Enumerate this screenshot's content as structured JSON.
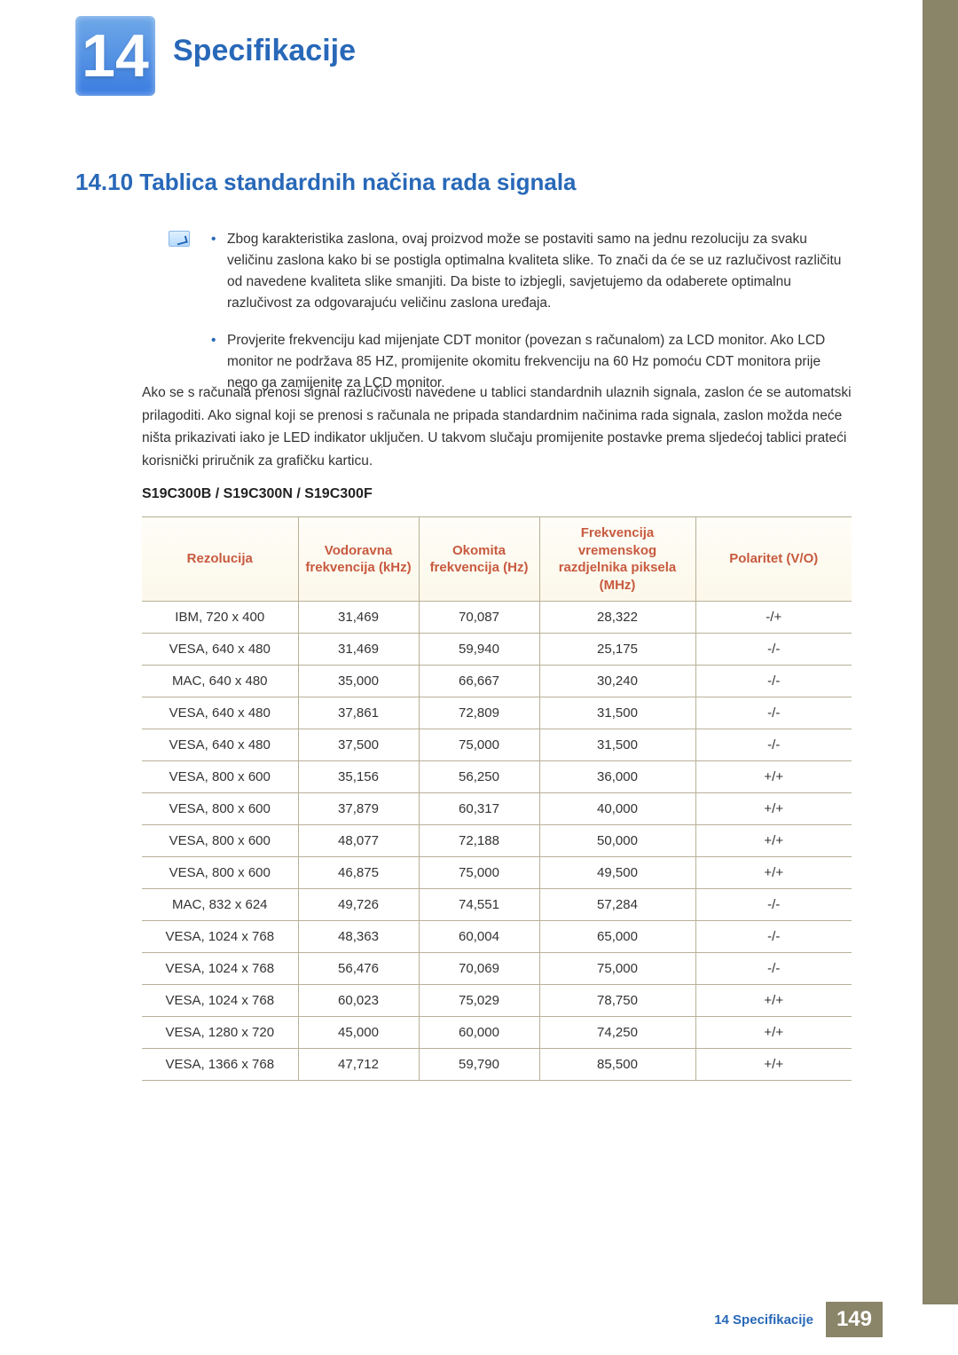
{
  "chapter": {
    "number": "14",
    "title": "Specifikacije"
  },
  "section": {
    "title": "14.10 Tablica standardnih načina rada signala"
  },
  "notes": [
    "Zbog karakteristika zaslona, ovaj proizvod može se postaviti samo na jednu rezoluciju za svaku veličinu zaslona kako bi se postigla optimalna kvaliteta slike. To znači da će se uz razlučivost različitu od navedene kvaliteta slike smanjiti. Da biste to izbjegli, savjetujemo da odaberete optimalnu razlučivost za odgovarajuću veličinu zaslona uređaja.",
    "Provjerite frekvenciju kad mijenjate CDT monitor (povezan s računalom) za LCD monitor. Ako LCD monitor ne podržava 85 HZ, promijenite okomitu frekvenciju na 60 Hz pomoću CDT monitora prije nego ga zamijenite za LCD monitor."
  ],
  "body_paragraph": "Ako se s računala prenosi signal razlučivosti navedene u tablici standardnih ulaznih signala, zaslon će se automatski prilagoditi. Ako signal koji se prenosi s računala ne pripada standardnim načinima rada signala, zaslon možda neće ništa prikazivati iako je LED indikator uključen. U takvom slučaju promijenite postavke prema sljedećoj tablici prateći korisnički priručnik za grafičku karticu.",
  "table": {
    "heading": "S19C300B / S19C300N / S19C300F",
    "header_color": "#c85a3f",
    "header_bg_top": "#fefdf7",
    "header_bg_bottom": "#fcf8ea",
    "border_color": "#b8b098",
    "columns": [
      "Rezolucija",
      "Vodoravna frekvencija (kHz)",
      "Okomita frekvencija (Hz)",
      "Frekvencija vremenskog razdjelnika piksela (MHz)",
      "Polaritet (V/O)"
    ],
    "rows": [
      [
        "IBM, 720 x 400",
        "31,469",
        "70,087",
        "28,322",
        "-/+"
      ],
      [
        "VESA, 640 x 480",
        "31,469",
        "59,940",
        "25,175",
        "-/-"
      ],
      [
        "MAC, 640 x 480",
        "35,000",
        "66,667",
        "30,240",
        "-/-"
      ],
      [
        "VESA, 640 x 480",
        "37,861",
        "72,809",
        "31,500",
        "-/-"
      ],
      [
        "VESA, 640 x 480",
        "37,500",
        "75,000",
        "31,500",
        "-/-"
      ],
      [
        "VESA, 800 x 600",
        "35,156",
        "56,250",
        "36,000",
        "+/+"
      ],
      [
        "VESA, 800 x 600",
        "37,879",
        "60,317",
        "40,000",
        "+/+"
      ],
      [
        "VESA, 800 x 600",
        "48,077",
        "72,188",
        "50,000",
        "+/+"
      ],
      [
        "VESA, 800 x 600",
        "46,875",
        "75,000",
        "49,500",
        "+/+"
      ],
      [
        "MAC, 832 x 624",
        "49,726",
        "74,551",
        "57,284",
        "-/-"
      ],
      [
        "VESA, 1024 x 768",
        "48,363",
        "60,004",
        "65,000",
        "-/-"
      ],
      [
        "VESA, 1024 x 768",
        "56,476",
        "70,069",
        "75,000",
        "-/-"
      ],
      [
        "VESA, 1024 x 768",
        "60,023",
        "75,029",
        "78,750",
        "+/+"
      ],
      [
        "VESA, 1280 x 720",
        "45,000",
        "60,000",
        "74,250",
        "+/+"
      ],
      [
        "VESA, 1366 x 768",
        "47,712",
        "59,790",
        "85,500",
        "+/+"
      ]
    ]
  },
  "footer": {
    "label": "14 Specifikacije",
    "page": "149"
  },
  "colors": {
    "accent_blue": "#2868b8",
    "side_stripe": "#8a8468",
    "page_box_bg": "#8a8468"
  }
}
